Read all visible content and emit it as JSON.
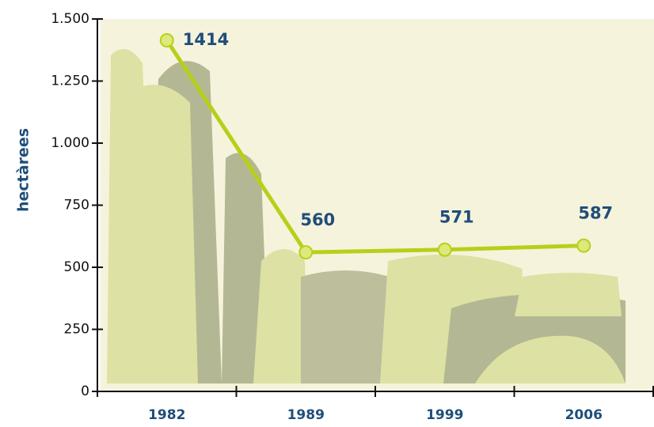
{
  "chart_data": {
    "type": "line",
    "y_label": "hectàrees",
    "categories": [
      "1982",
      "1989",
      "1999",
      "2006"
    ],
    "values": [
      1414,
      560,
      571,
      587
    ],
    "color": "#b8cf1a",
    "ylim": [
      0,
      1500
    ],
    "yticks": [
      0,
      250,
      500,
      750,
      {
        "value": 1000,
        "label": "1.000"
      },
      {
        "value": 1250,
        "label": "1.250"
      },
      {
        "value": 1500,
        "label": "1.500"
      }
    ]
  }
}
